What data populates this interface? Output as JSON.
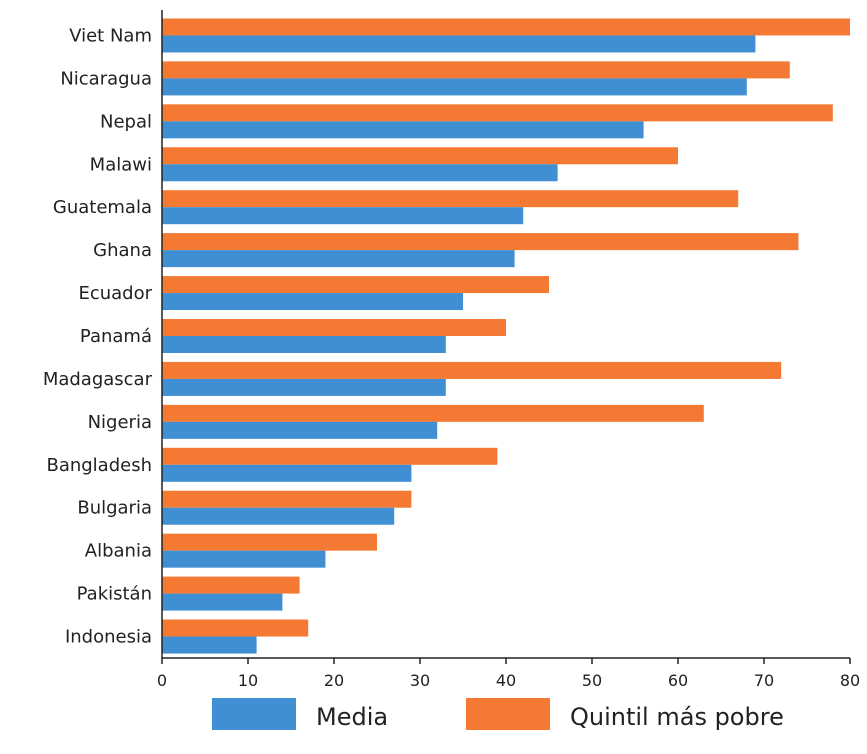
{
  "chart_data": {
    "type": "bar",
    "orientation": "horizontal",
    "categories": [
      "Viet Nam",
      "Nicaragua",
      "Nepal",
      "Malawi",
      "Guatemala",
      "Ghana",
      "Ecuador",
      "Panamá",
      "Madagascar",
      "Nigeria",
      "Bangladesh",
      "Bulgaria",
      "Albania",
      "Pakistán",
      "Indonesia"
    ],
    "series": [
      {
        "name": "Quintil más pobre",
        "color": "#f47932",
        "values": [
          80,
          73,
          78,
          60,
          67,
          74,
          45,
          40,
          72,
          63,
          39,
          29,
          25,
          16,
          17
        ]
      },
      {
        "name": "Media",
        "color": "#3f8fd2",
        "values": [
          69,
          68,
          56,
          46,
          42,
          41,
          35,
          33,
          33,
          32,
          29,
          27,
          19,
          14,
          11
        ]
      }
    ],
    "xlim": [
      0,
      80
    ],
    "xticks": [
      0,
      10,
      20,
      30,
      40,
      50,
      60,
      70,
      80
    ],
    "xlabel": "",
    "ylabel": "",
    "title": "",
    "grid": false,
    "legend": {
      "position": "bottom",
      "items": [
        {
          "label": "Media",
          "color": "#3f8fd2"
        },
        {
          "label": "Quintil más pobre",
          "color": "#f47932"
        }
      ]
    }
  }
}
